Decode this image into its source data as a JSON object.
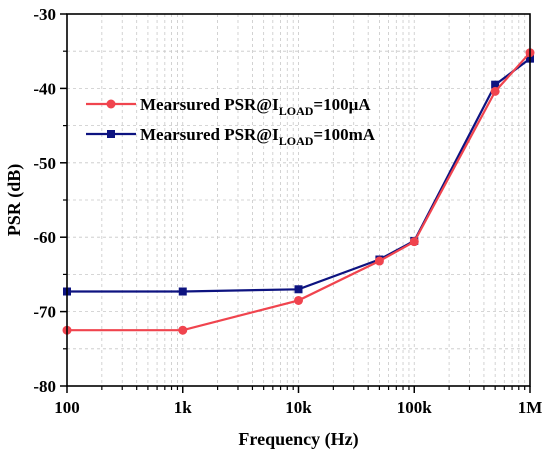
{
  "chart_data": {
    "type": "line",
    "title": "",
    "xlabel": "Frequency (Hz)",
    "ylabel": "PSR (dB)",
    "xscale": "log",
    "xlim": [
      100,
      1000000
    ],
    "ylim": [
      -80,
      -30
    ],
    "grid": true,
    "legend_position": "top-left",
    "x_ticks": [
      {
        "value": 100,
        "label": "100"
      },
      {
        "value": 1000,
        "label": "1k"
      },
      {
        "value": 10000,
        "label": "10k"
      },
      {
        "value": 100000,
        "label": "100k"
      },
      {
        "value": 1000000,
        "label": "1M"
      }
    ],
    "y_ticks": [
      {
        "value": -30,
        "label": "-30"
      },
      {
        "value": -40,
        "label": "-40"
      },
      {
        "value": -50,
        "label": "-50"
      },
      {
        "value": -60,
        "label": "-60"
      },
      {
        "value": -70,
        "label": "-70"
      },
      {
        "value": -80,
        "label": "-80"
      }
    ],
    "series": [
      {
        "name_prefix": "Mearsured PSR@I",
        "name_sub": "LOAD",
        "name_suffix": "=100μA",
        "color": "#f0444e",
        "marker": "circle",
        "x": [
          100,
          1000,
          10000,
          50000,
          100000,
          500000,
          1000000
        ],
        "y": [
          -72.5,
          -72.5,
          -68.5,
          -63.2,
          -60.6,
          -40.4,
          -35.2
        ]
      },
      {
        "name_prefix": "Mearsured PSR@I",
        "name_sub": "LOAD",
        "name_suffix": "=100mA",
        "color": "#0d1380",
        "marker": "square",
        "x": [
          100,
          1000,
          10000,
          50000,
          100000,
          500000,
          1000000
        ],
        "y": [
          -67.3,
          -67.3,
          -67.0,
          -63.0,
          -60.5,
          -39.5,
          -36.0
        ]
      }
    ]
  }
}
